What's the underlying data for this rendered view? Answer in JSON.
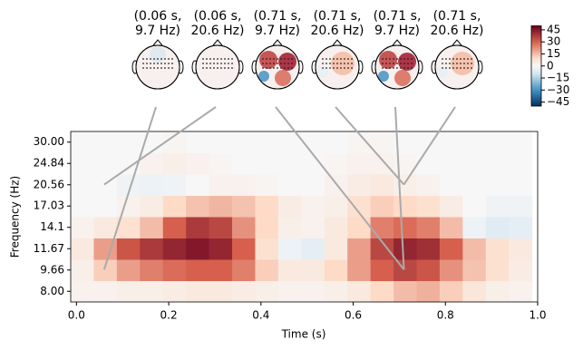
{
  "chart_data": {
    "type": "heatmap",
    "x": [
      0.0125,
      0.0625,
      0.1125,
      0.1625,
      0.2125,
      0.2625,
      0.3125,
      0.3625,
      0.4125,
      0.4625,
      0.5125,
      0.5625,
      0.6125,
      0.6625,
      0.7125,
      0.7625,
      0.8125,
      0.8625,
      0.9125,
      0.9625
    ],
    "y": [
      8.0,
      9.66,
      11.67,
      14.1,
      17.03,
      20.56,
      24.84,
      30.0
    ],
    "values": [
      [
        2,
        2,
        3,
        3,
        4,
        5,
        5,
        4,
        3,
        2,
        2,
        3,
        5,
        10,
        15,
        17,
        12,
        6,
        3,
        2
      ],
      [
        3,
        12,
        20,
        25,
        28,
        30,
        30,
        25,
        12,
        5,
        5,
        10,
        20,
        30,
        35,
        32,
        22,
        14,
        8,
        4
      ],
      [
        5,
        20,
        32,
        38,
        42,
        45,
        42,
        30,
        8,
        -3,
        -5,
        5,
        20,
        35,
        42,
        40,
        30,
        15,
        8,
        5
      ],
      [
        2,
        5,
        8,
        15,
        30,
        38,
        35,
        22,
        10,
        3,
        2,
        5,
        10,
        25,
        28,
        25,
        15,
        -3,
        -6,
        -5
      ],
      [
        0,
        0,
        2,
        4,
        10,
        14,
        16,
        14,
        10,
        4,
        2,
        3,
        8,
        12,
        10,
        8,
        4,
        0,
        -2,
        -2
      ],
      [
        0,
        0,
        -2,
        -3,
        -2,
        0,
        2,
        2,
        1,
        0,
        0,
        2,
        4,
        5,
        3,
        2,
        0,
        0,
        0,
        0
      ],
      [
        0,
        0,
        0,
        2,
        3,
        2,
        1,
        0,
        0,
        0,
        0,
        1,
        2,
        2,
        1,
        0,
        0,
        0,
        0,
        0
      ],
      [
        0,
        0,
        0,
        0,
        1,
        0,
        0,
        0,
        0,
        0,
        0,
        0,
        1,
        1,
        0,
        0,
        0,
        0,
        0,
        0
      ]
    ],
    "colormap": "RdBu_r",
    "clim": [
      -50,
      50
    ],
    "cticks": [
      45,
      30,
      15,
      0,
      {
        "value": -15,
        "label": "−15"
      },
      {
        "value": -30,
        "label": "−30"
      },
      {
        "value": -45,
        "label": "−45"
      }
    ],
    "xlim": [
      -0.0125,
      1.0
    ],
    "xticks": [
      {
        "value": 0,
        "label": "0.0"
      },
      0.2,
      0.4,
      0.6,
      0.8,
      {
        "value": 1,
        "label": "1.0"
      }
    ],
    "ylog": true,
    "ylim": [
      7.28,
      32.97
    ],
    "yticks": [
      {
        "value": 8,
        "label": "8.00"
      },
      9.66,
      11.67,
      14.1,
      17.03,
      20.56,
      24.84,
      {
        "value": 30,
        "label": "30.00"
      }
    ],
    "xlabel": "Time (s)",
    "ylabel": "Frequency (Hz)",
    "topomaps": [
      {
        "time": 0.06,
        "freq": 9.7,
        "title_lines": [
          "(0.06 s,",
          "9.7 Hz)"
        ]
      },
      {
        "time": 0.06,
        "freq": 20.6,
        "title_lines": [
          "(0.06 s,",
          "20.6 Hz)"
        ]
      },
      {
        "time": 0.71,
        "freq": 9.7,
        "title_lines": [
          "(0.71 s,",
          "9.7 Hz)"
        ]
      },
      {
        "time": 0.71,
        "freq": 20.6,
        "title_lines": [
          "(0.71 s,",
          "20.6 Hz)"
        ]
      },
      {
        "time": 0.71,
        "freq": 9.7,
        "title_lines": [
          "(0.71 s,",
          "9.7 Hz)"
        ]
      },
      {
        "time": 0.71,
        "freq": 20.6,
        "title_lines": [
          "(0.71 s,",
          "20.6 Hz)"
        ]
      }
    ]
  }
}
